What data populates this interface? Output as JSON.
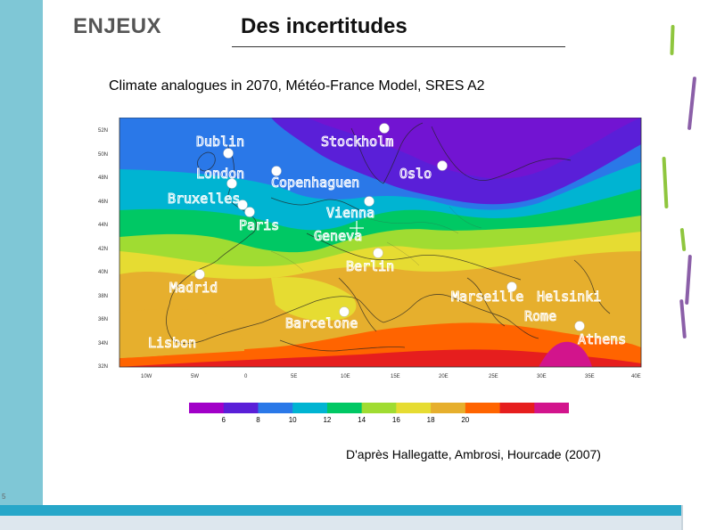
{
  "header": {
    "section": "ENJEUX",
    "title": "Des incertitudes"
  },
  "subtitle": "Climate analogues in 2070, Météo-France Model, SRES A2",
  "credit": "D'après Hallegatte, Ambrosi, Hourcade (2007)",
  "page_number": "5",
  "map": {
    "lat_labels": [
      "52N",
      "50N",
      "48N",
      "46N",
      "44N",
      "42N",
      "40N",
      "38N",
      "36N",
      "34N",
      "32N"
    ],
    "lon_labels": [
      "10W",
      "5W",
      "0",
      "5E",
      "10E",
      "15E",
      "20E",
      "25E",
      "30E",
      "35E",
      "40E"
    ],
    "cities": [
      {
        "name": "Dublin"
      },
      {
        "name": "Stockholm"
      },
      {
        "name": "London"
      },
      {
        "name": "Oslo"
      },
      {
        "name": "Copenhaguen"
      },
      {
        "name": "Bruxelles"
      },
      {
        "name": "Paris"
      },
      {
        "name": "Vienna"
      },
      {
        "name": "Geneva"
      },
      {
        "name": "Berlin"
      },
      {
        "name": "Madrid"
      },
      {
        "name": "Marseille"
      },
      {
        "name": "Helsinki"
      },
      {
        "name": "Rome"
      },
      {
        "name": "Barcelone"
      },
      {
        "name": "Athens"
      },
      {
        "name": "Lisbon"
      }
    ]
  },
  "scale": {
    "labels": [
      "6",
      "8",
      "10",
      "12",
      "14",
      "16",
      "18",
      "20"
    ],
    "colors": [
      "#a100c8",
      "#5a1fd8",
      "#2a78e8",
      "#00b4d2",
      "#00c864",
      "#a0dc32",
      "#e6dc32",
      "#e6af2d",
      "#ff6400",
      "#e61e1e",
      "#d2148c"
    ]
  }
}
